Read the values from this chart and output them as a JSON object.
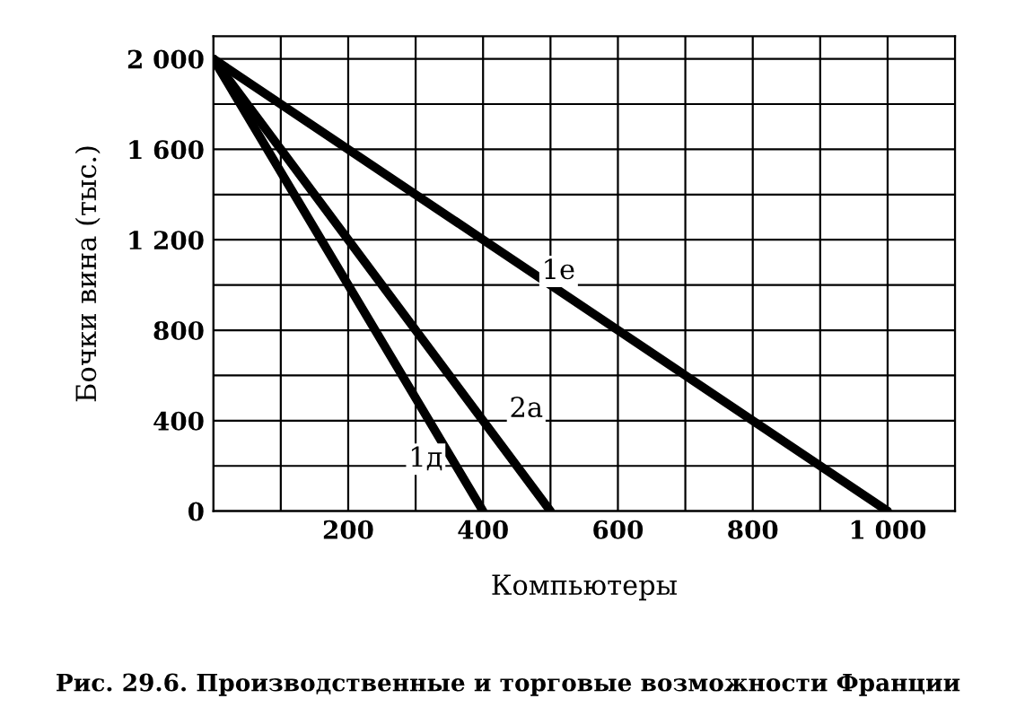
{
  "chart_data": {
    "type": "line",
    "xlabel": "Компьютеры",
    "ylabel": "Бочки вина (тыс.)",
    "series": [
      {
        "color": "#000000",
        "x": [
          0,
          400
        ],
        "values": [
          2000,
          0
        ]
      },
      {
        "color": "#000000",
        "x": [
          0,
          500
        ],
        "values": [
          2000,
          0
        ]
      },
      {
        "color": "#000000",
        "x": [
          0,
          1000
        ],
        "values": [
          2000,
          0
        ]
      }
    ],
    "xlim": [
      0,
      1100
    ],
    "ylim": [
      0,
      2100
    ],
    "xticks": [
      200,
      400,
      600,
      800,
      {
        "value": 1000,
        "label": "1 000"
      }
    ],
    "yticks": [
      0,
      400,
      800,
      {
        "value": 1200,
        "label": "1 200"
      },
      {
        "value": 1600,
        "label": "1 600"
      },
      {
        "value": 2000,
        "label": "2 000"
      }
    ],
    "grid": true,
    "marker": "none",
    "line_style": "solid",
    "annotations": [
      {
        "text": "1д",
        "x": 315,
        "y": 230
      },
      {
        "text": "2а",
        "x": 464,
        "y": 450
      },
      {
        "text": "1е",
        "x": 512,
        "y": 1060
      },
      "Рис. 29.6. Производственные и торговые возможности Франции"
    ]
  }
}
